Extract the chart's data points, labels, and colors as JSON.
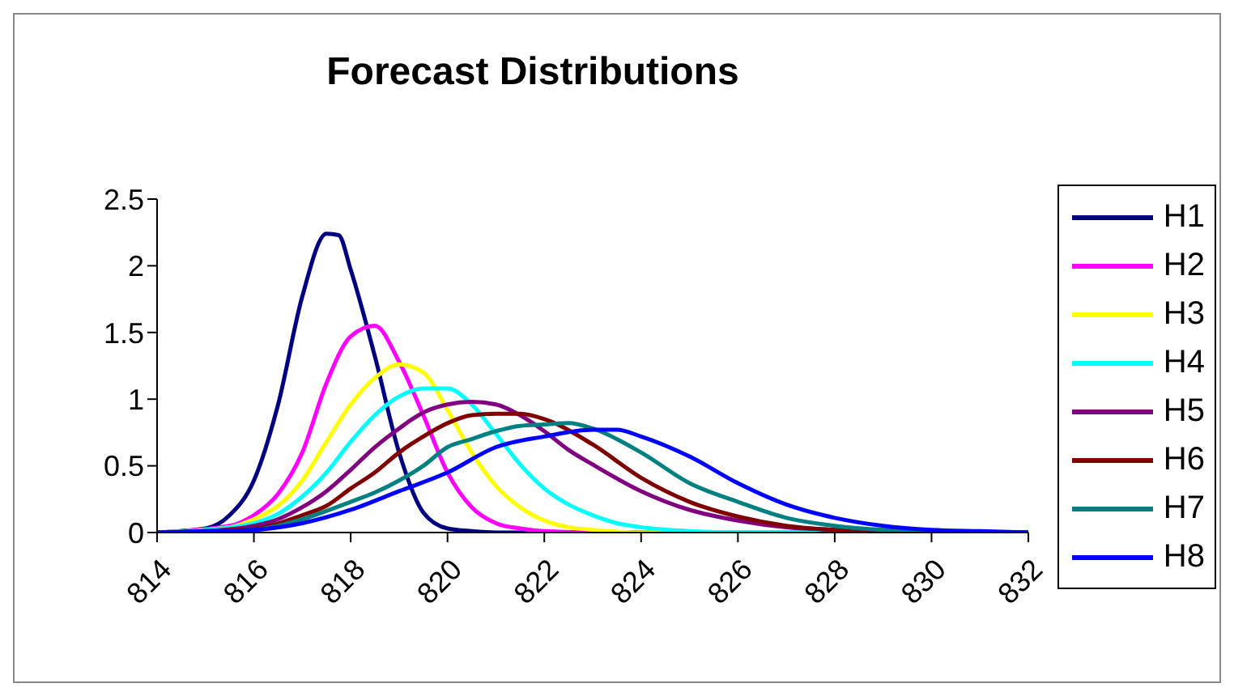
{
  "chart_data": {
    "type": "line",
    "title": "Forecast Distributions",
    "xlim": [
      814,
      832
    ],
    "xticks": [
      814,
      816,
      818,
      820,
      822,
      824,
      826,
      828,
      830,
      832
    ],
    "ylim": [
      0,
      2.5
    ],
    "yticks": [
      0,
      0.5,
      1,
      1.5,
      2,
      2.5
    ],
    "grid": false,
    "legend": "right",
    "marker": "none",
    "line_style": "solid",
    "series": [
      {
        "name": "H1",
        "color": "#000080",
        "x": [
          814,
          815,
          815.5,
          816,
          816.5,
          817,
          817.5,
          817.75,
          818,
          818.5,
          819,
          819.5,
          820,
          820.5,
          821,
          832
        ],
        "values": [
          0,
          0.03,
          0.13,
          0.39,
          0.96,
          1.77,
          2.24,
          2.23,
          1.97,
          1.32,
          0.6,
          0.15,
          0.03,
          0.01,
          0,
          0
        ]
      },
      {
        "name": "H2",
        "color": "#ff00ff",
        "x": [
          814,
          815.5,
          816,
          816.5,
          817,
          817.5,
          818,
          818.5,
          819,
          819.5,
          820,
          820.5,
          821,
          821.5,
          822,
          823,
          832
        ],
        "values": [
          0,
          0.05,
          0.13,
          0.29,
          0.6,
          1.12,
          1.47,
          1.55,
          1.28,
          0.88,
          0.45,
          0.19,
          0.07,
          0.03,
          0.01,
          0,
          0
        ]
      },
      {
        "name": "H3",
        "color": "#ffff00",
        "x": [
          814,
          815.5,
          816,
          816.5,
          817,
          817.5,
          818,
          818.5,
          819,
          819.5,
          820,
          820.5,
          821,
          821.5,
          822,
          822.5,
          823,
          824,
          832
        ],
        "values": [
          0,
          0.04,
          0.1,
          0.2,
          0.39,
          0.68,
          0.96,
          1.16,
          1.26,
          1.2,
          0.92,
          0.6,
          0.35,
          0.19,
          0.09,
          0.04,
          0.02,
          0,
          0
        ]
      },
      {
        "name": "H4",
        "color": "#00ffff",
        "x": [
          814,
          815,
          816,
          816.5,
          817,
          817.5,
          818,
          818.5,
          819,
          819.5,
          820,
          820.5,
          821,
          821.5,
          822,
          822.5,
          823,
          823.5,
          824,
          825,
          826,
          832
        ],
        "values": [
          0,
          0.02,
          0.07,
          0.14,
          0.27,
          0.45,
          0.68,
          0.88,
          1.02,
          1.08,
          1.08,
          0.96,
          0.74,
          0.51,
          0.33,
          0.21,
          0.13,
          0.07,
          0.04,
          0.01,
          0,
          0
        ]
      },
      {
        "name": "H5",
        "color": "#800080",
        "x": [
          814,
          815,
          816,
          816.5,
          817,
          817.5,
          818,
          818.5,
          819,
          819.5,
          820,
          820.5,
          821,
          821.5,
          822,
          822.5,
          823,
          824,
          825,
          826,
          827,
          828,
          829,
          832
        ],
        "values": [
          0,
          0.01,
          0.05,
          0.1,
          0.19,
          0.31,
          0.47,
          0.64,
          0.78,
          0.9,
          0.96,
          0.98,
          0.96,
          0.88,
          0.76,
          0.62,
          0.51,
          0.31,
          0.17,
          0.09,
          0.04,
          0.02,
          0,
          0
        ]
      },
      {
        "name": "H6",
        "color": "#800000",
        "x": [
          814,
          816,
          817,
          817.5,
          818,
          818.5,
          819,
          819.5,
          820,
          820.5,
          821,
          821.5,
          822,
          823,
          824,
          825,
          826,
          827,
          828,
          829,
          830,
          832
        ],
        "values": [
          0,
          0.03,
          0.13,
          0.2,
          0.33,
          0.45,
          0.6,
          0.72,
          0.82,
          0.88,
          0.89,
          0.89,
          0.85,
          0.66,
          0.41,
          0.23,
          0.12,
          0.05,
          0.02,
          0.01,
          0,
          0
        ]
      },
      {
        "name": "H7",
        "color": "#008080",
        "x": [
          814,
          815,
          816,
          817,
          818,
          818.5,
          819,
          819.5,
          820,
          820.5,
          821,
          821.5,
          822,
          822.5,
          823,
          824,
          825,
          826,
          827,
          828,
          829,
          830,
          831,
          832
        ],
        "values": [
          0,
          0.01,
          0.02,
          0.1,
          0.23,
          0.3,
          0.39,
          0.5,
          0.64,
          0.7,
          0.76,
          0.8,
          0.81,
          0.82,
          0.78,
          0.6,
          0.37,
          0.23,
          0.11,
          0.05,
          0.02,
          0.01,
          0,
          0
        ]
      },
      {
        "name": "H8",
        "color": "#0000ff",
        "x": [
          814,
          815,
          816,
          817,
          818,
          819,
          820,
          821,
          822,
          823,
          823.5,
          824,
          825,
          826,
          827,
          828,
          829,
          830,
          831,
          832
        ],
        "values": [
          0,
          0.01,
          0.02,
          0.07,
          0.17,
          0.31,
          0.45,
          0.64,
          0.72,
          0.77,
          0.77,
          0.72,
          0.57,
          0.37,
          0.21,
          0.11,
          0.05,
          0.02,
          0.01,
          0
        ]
      }
    ]
  }
}
